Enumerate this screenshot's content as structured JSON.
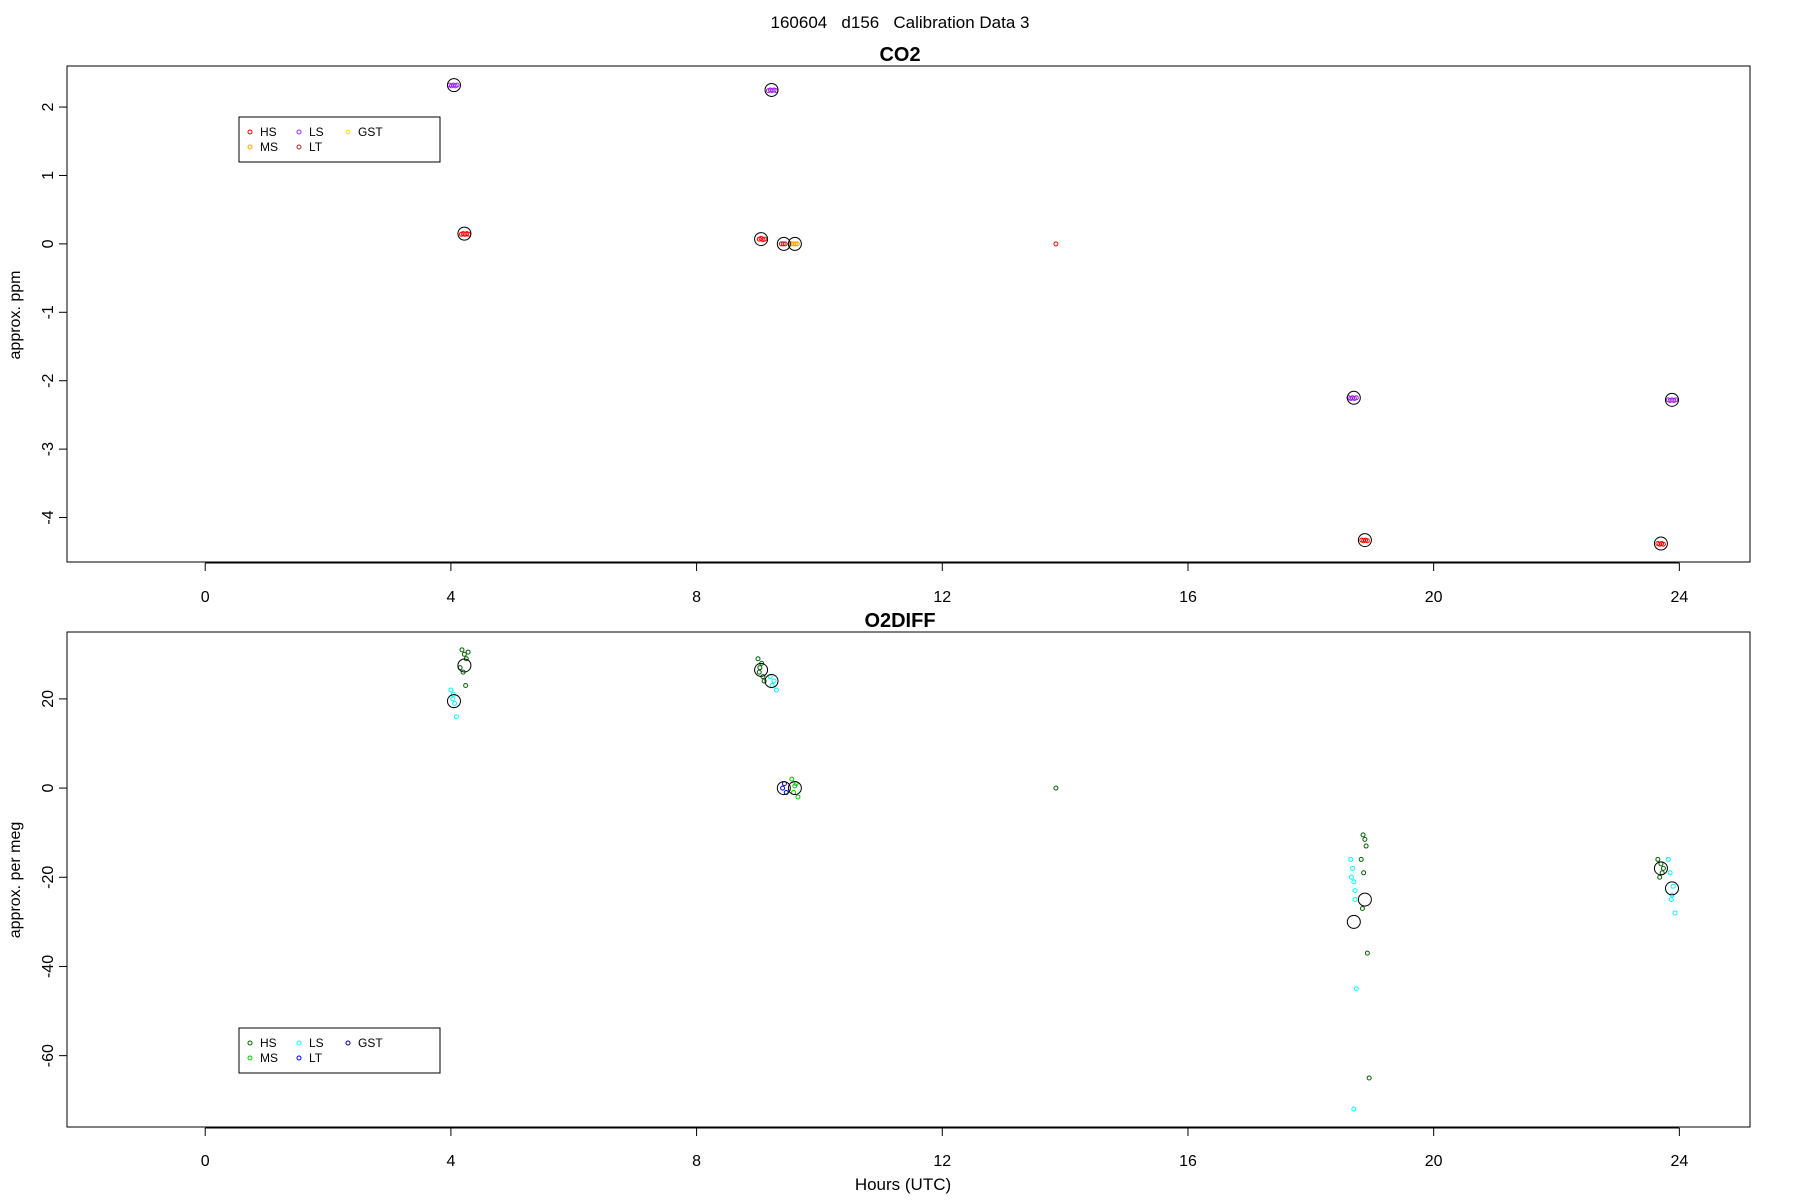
{
  "page_title": "160604   d156   Calibration Data 3",
  "chart_data": [
    {
      "type": "scatter",
      "title": "CO2",
      "xlabel": "",
      "ylabel": "approx. ppm",
      "xlim": [
        -2.25,
        25.15
      ],
      "ylim": [
        -4.65,
        2.6
      ],
      "xticks": [
        0,
        4,
        8,
        12,
        16,
        20,
        24
      ],
      "yticks": [
        -4,
        -3,
        -2,
        -1,
        0,
        1,
        2
      ],
      "grid": false,
      "legend_position": "top-left",
      "legend": [
        {
          "name": "HS",
          "color": "#ff0000"
        },
        {
          "name": "MS",
          "color": "#ffa500"
        },
        {
          "name": "LS",
          "color": "#a020f0"
        },
        {
          "name": "LT",
          "color": "#b22222"
        },
        {
          "name": "GST",
          "color": "#ffd700"
        }
      ],
      "series": [
        {
          "name": "HS",
          "color": "#ff0000",
          "x": [
            4.17,
            4.2,
            4.23,
            4.26,
            4.29,
            9.02,
            9.05,
            9.08,
            9.11,
            13.85,
            18.83,
            18.86,
            18.89,
            18.92,
            23.65,
            23.68,
            23.71,
            23.74
          ],
          "y": [
            0.14,
            0.15,
            0.14,
            0.15,
            0.14,
            0.07,
            0.08,
            0.06,
            0.07,
            0.0,
            -4.33,
            -4.34,
            -4.33,
            -4.34,
            -4.38,
            -4.39,
            -4.38,
            -4.39
          ]
        },
        {
          "name": "MS",
          "color": "#ffa500",
          "x": [
            9.52,
            9.55,
            9.58,
            9.61,
            9.64
          ],
          "y": [
            0.0,
            0.0,
            0.0,
            0.0,
            0.0
          ]
        },
        {
          "name": "LS",
          "color": "#a020f0",
          "x": [
            3.98,
            4.01,
            4.04,
            4.07,
            4.1,
            9.17,
            9.2,
            9.23,
            9.26,
            9.29,
            18.62,
            18.65,
            18.68,
            18.71,
            18.74,
            23.82,
            23.85,
            23.88,
            23.91,
            23.94
          ],
          "y": [
            2.32,
            2.31,
            2.32,
            2.31,
            2.32,
            2.24,
            2.25,
            2.24,
            2.25,
            2.24,
            -2.25,
            -2.26,
            -2.25,
            -2.26,
            -2.25,
            -2.28,
            -2.29,
            -2.28,
            -2.29,
            -2.28
          ]
        },
        {
          "name": "LT",
          "color": "#b22222",
          "x": [
            9.38,
            9.41,
            9.44
          ],
          "y": [
            0.0,
            0.0,
            0.0
          ]
        }
      ],
      "means": {
        "color": "#000000",
        "x": [
          4.05,
          4.22,
          9.05,
          9.22,
          9.42,
          9.6,
          18.7,
          18.88,
          23.7,
          23.88
        ],
        "y": [
          2.32,
          0.15,
          0.07,
          2.25,
          0.0,
          0.0,
          -2.25,
          -4.33,
          -4.38,
          -2.28
        ]
      }
    },
    {
      "type": "scatter",
      "title": "O2DIFF",
      "xlabel": "Hours (UTC)",
      "ylabel": "approx. per meg",
      "xlim": [
        -2.25,
        25.15
      ],
      "ylim": [
        -76,
        35
      ],
      "xticks": [
        0,
        4,
        8,
        12,
        16,
        20,
        24
      ],
      "yticks": [
        -60,
        -40,
        -20,
        0,
        20
      ],
      "grid": false,
      "legend_position": "bottom-left",
      "legend": [
        {
          "name": "HS",
          "color": "#006400"
        },
        {
          "name": "MS",
          "color": "#00cd00"
        },
        {
          "name": "LS",
          "color": "#00ffff"
        },
        {
          "name": "LT",
          "color": "#0000ff"
        },
        {
          "name": "GST",
          "color": "#00008b"
        }
      ],
      "series": [
        {
          "name": "HS",
          "color": "#006400",
          "x": [
            4.18,
            4.22,
            4.25,
            4.15,
            4.28,
            4.2,
            4.24,
            9.0,
            9.03,
            9.06,
            9.1,
            9.02,
            9.08,
            13.85,
            18.85,
            18.88,
            18.82,
            18.9,
            18.86,
            18.84,
            18.92,
            18.95,
            23.65,
            23.7,
            23.72,
            23.68,
            23.74
          ],
          "y": [
            31,
            30,
            29,
            27,
            30.5,
            26,
            23,
            29,
            27,
            28,
            24,
            26,
            25,
            0,
            -10.5,
            -11.5,
            -16,
            -13,
            -19,
            -27,
            -37,
            -65,
            -16,
            -17,
            -19,
            -20,
            -18
          ]
        },
        {
          "name": "MS",
          "color": "#00cd00",
          "x": [
            9.55,
            9.58,
            9.62,
            9.65,
            9.6
          ],
          "y": [
            2,
            -1,
            1,
            -2,
            0.5
          ]
        },
        {
          "name": "LS",
          "color": "#00ffff",
          "x": [
            4.0,
            4.03,
            4.06,
            4.09,
            4.04,
            9.2,
            9.23,
            9.26,
            9.3,
            18.65,
            18.68,
            18.7,
            18.72,
            18.66,
            18.74,
            18.7,
            18.72,
            23.82,
            23.85,
            23.9,
            23.87,
            23.93,
            23.88
          ],
          "y": [
            22,
            20,
            19,
            16,
            21,
            25,
            23,
            24,
            22,
            -16,
            -18,
            -21,
            -23,
            -20,
            -45,
            -72,
            -25,
            -16,
            -19,
            -22,
            -25,
            -28,
            -24
          ]
        },
        {
          "name": "LT",
          "color": "#0000ff",
          "x": [
            9.4,
            9.43,
            9.46
          ],
          "y": [
            0,
            1,
            -1
          ]
        },
        {
          "name": "GST",
          "color": "#00008b",
          "x": [],
          "y": []
        }
      ],
      "means": {
        "color": "#000000",
        "x": [
          4.05,
          4.22,
          9.05,
          9.22,
          9.42,
          9.6,
          18.7,
          18.88,
          23.7,
          23.88
        ],
        "y": [
          19.5,
          27.5,
          26.5,
          24,
          0,
          0,
          -30,
          -25,
          -18,
          -22.5
        ]
      }
    }
  ]
}
